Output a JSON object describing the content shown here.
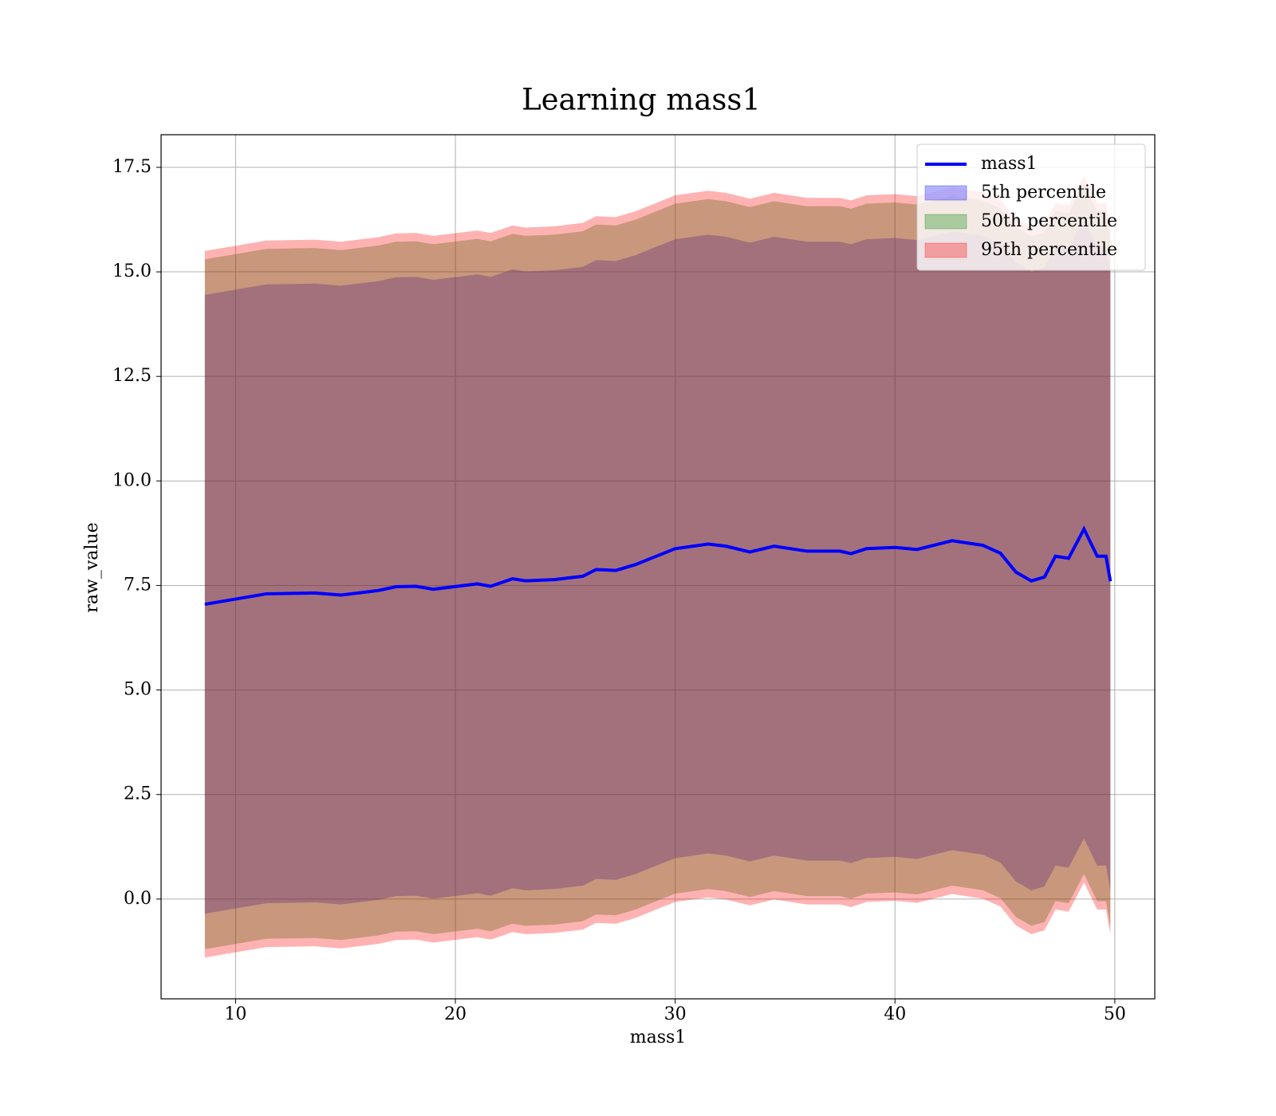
{
  "chart_data": {
    "type": "line_band",
    "title": "Learning mass1",
    "xlabel": "mass1",
    "ylabel": "raw_value",
    "x": [
      8.6,
      11.4,
      13.6,
      14.8,
      16.5,
      17.3,
      18.2,
      19.0,
      21.0,
      21.6,
      22.6,
      23.2,
      24.5,
      25.8,
      26.4,
      27.3,
      28.2,
      29.0,
      30.0,
      31.5,
      32.3,
      33.4,
      34.5,
      36.0,
      37.5,
      38.0,
      38.7,
      40.0,
      41.0,
      42.6,
      44.0,
      44.8,
      45.5,
      46.2,
      46.8,
      47.3,
      47.9,
      48.6,
      49.2,
      49.6,
      49.8
    ],
    "series": [
      {
        "name": "mass1",
        "color": "#0000ff",
        "values": [
          7.05,
          7.3,
          7.32,
          7.27,
          7.38,
          7.47,
          7.48,
          7.41,
          7.54,
          7.48,
          7.66,
          7.61,
          7.64,
          7.72,
          7.88,
          7.86,
          8.0,
          8.17,
          8.38,
          8.49,
          8.44,
          8.3,
          8.44,
          8.32,
          8.32,
          8.26,
          8.38,
          8.41,
          8.36,
          8.57,
          8.46,
          8.27,
          7.82,
          7.61,
          7.7,
          8.2,
          8.15,
          8.85,
          8.2,
          8.2,
          7.6
        ]
      }
    ],
    "bands": [
      {
        "name": "5th percentile",
        "color": "#0000ff",
        "alpha": 0.3,
        "lower": [
          -0.35,
          -0.1,
          -0.08,
          -0.13,
          -0.02,
          0.07,
          0.08,
          0.01,
          0.14,
          0.08,
          0.26,
          0.21,
          0.24,
          0.32,
          0.48,
          0.46,
          0.6,
          0.77,
          0.98,
          1.09,
          1.04,
          0.9,
          1.04,
          0.92,
          0.92,
          0.86,
          0.98,
          1.01,
          0.96,
          1.17,
          1.06,
          0.87,
          0.42,
          0.21,
          0.3,
          0.8,
          0.75,
          1.45,
          0.8,
          0.8,
          0.2
        ],
        "upper": [
          14.45,
          14.7,
          14.72,
          14.67,
          14.78,
          14.87,
          14.88,
          14.81,
          14.94,
          14.88,
          15.06,
          15.01,
          15.04,
          15.12,
          15.28,
          15.26,
          15.4,
          15.57,
          15.78,
          15.89,
          15.84,
          15.7,
          15.84,
          15.72,
          15.72,
          15.66,
          15.78,
          15.81,
          15.76,
          15.97,
          15.86,
          15.67,
          15.22,
          15.01,
          15.1,
          15.6,
          15.55,
          16.25,
          15.6,
          15.6,
          15.0
        ]
      },
      {
        "name": "50th percentile",
        "color": "#008000",
        "alpha": 0.3,
        "lower": [
          -1.2,
          -0.95,
          -0.93,
          -0.98,
          -0.87,
          -0.78,
          -0.77,
          -0.84,
          -0.71,
          -0.77,
          -0.59,
          -0.64,
          -0.61,
          -0.53,
          -0.37,
          -0.39,
          -0.25,
          -0.08,
          0.13,
          0.24,
          0.19,
          0.05,
          0.19,
          0.07,
          0.07,
          0.01,
          0.13,
          0.16,
          0.11,
          0.32,
          0.21,
          0.02,
          -0.43,
          -0.64,
          -0.55,
          -0.05,
          -0.1,
          0.6,
          -0.05,
          -0.05,
          -0.65
        ],
        "upper": [
          15.3,
          15.55,
          15.57,
          15.52,
          15.63,
          15.72,
          15.73,
          15.66,
          15.79,
          15.73,
          15.91,
          15.86,
          15.89,
          15.97,
          16.13,
          16.11,
          16.25,
          16.42,
          16.63,
          16.74,
          16.69,
          16.55,
          16.69,
          16.57,
          16.57,
          16.51,
          16.63,
          16.66,
          16.61,
          16.82,
          16.71,
          16.52,
          16.07,
          15.86,
          15.95,
          16.45,
          16.4,
          17.1,
          16.45,
          16.45,
          15.85
        ]
      },
      {
        "name": "95th percentile",
        "color": "#ff0000",
        "alpha": 0.3,
        "lower": [
          -1.4,
          -1.15,
          -1.13,
          -1.18,
          -1.07,
          -0.98,
          -0.97,
          -1.04,
          -0.91,
          -0.97,
          -0.79,
          -0.84,
          -0.81,
          -0.73,
          -0.57,
          -0.59,
          -0.45,
          -0.28,
          -0.07,
          0.04,
          -0.01,
          -0.15,
          -0.01,
          -0.13,
          -0.13,
          -0.19,
          -0.07,
          -0.04,
          -0.09,
          0.12,
          0.01,
          -0.18,
          -0.63,
          -0.84,
          -0.75,
          -0.25,
          -0.3,
          0.4,
          -0.25,
          -0.25,
          -0.85
        ],
        "upper": [
          15.5,
          15.75,
          15.77,
          15.72,
          15.83,
          15.92,
          15.93,
          15.86,
          15.99,
          15.93,
          16.11,
          16.06,
          16.09,
          16.17,
          16.33,
          16.31,
          16.45,
          16.62,
          16.83,
          16.94,
          16.89,
          16.75,
          16.89,
          16.77,
          16.77,
          16.71,
          16.83,
          16.86,
          16.81,
          17.02,
          16.91,
          16.72,
          16.27,
          16.06,
          16.15,
          16.65,
          16.6,
          17.3,
          16.65,
          16.65,
          16.05
        ]
      }
    ],
    "xlim": [
      6.61,
      51.82
    ],
    "ylim": [
      -2.386,
      18.28
    ],
    "xticks": [
      10,
      20,
      30,
      40,
      50
    ],
    "yticks": [
      {
        "value": 0,
        "label": "0.0"
      },
      2.5,
      {
        "value": 5,
        "label": "5.0"
      },
      7.5,
      {
        "value": 10,
        "label": "10.0"
      },
      12.5,
      {
        "value": 15,
        "label": "15.0"
      },
      17.5
    ],
    "grid": true,
    "legend": "upper right"
  }
}
